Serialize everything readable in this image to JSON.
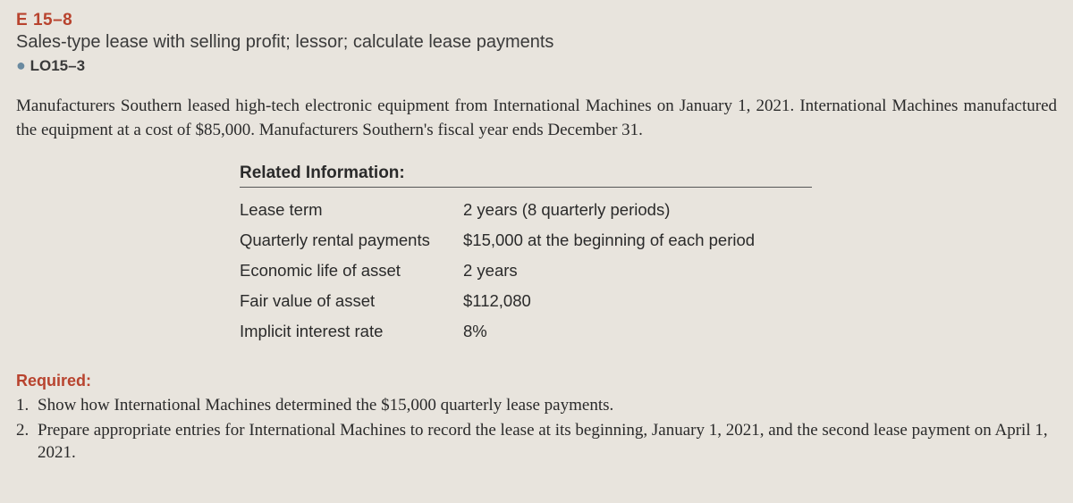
{
  "exercise": {
    "code": "E 15–8",
    "title": "Sales-type lease with selling profit; lessor; calculate lease payments",
    "lo": "LO15–3"
  },
  "paragraph": "Manufacturers Southern leased high-tech electronic equipment from International Machines on January 1, 2021. International Machines manufactured the equipment at a cost of $85,000. Manufacturers Southern's fiscal year ends December 31.",
  "info": {
    "heading": "Related Information:",
    "rows": [
      {
        "label": "Lease term",
        "value": "2 years (8 quarterly periods)"
      },
      {
        "label": "Quarterly rental payments",
        "value": "$15,000 at the beginning of each period"
      },
      {
        "label": "Economic life of asset",
        "value": "2 years"
      },
      {
        "label": "Fair value of asset",
        "value": "$112,080"
      },
      {
        "label": "Implicit interest rate",
        "value": "8%"
      }
    ]
  },
  "required": {
    "heading": "Required:",
    "items": [
      {
        "num": "1.",
        "text": "Show how International Machines determined the $15,000 quarterly lease payments."
      },
      {
        "num": "2.",
        "text": "Prepare appropriate entries for International Machines to record the lease at its beginning, January 1, 2021, and the second lease payment on April 1, 2021."
      }
    ]
  },
  "bullet": "●"
}
